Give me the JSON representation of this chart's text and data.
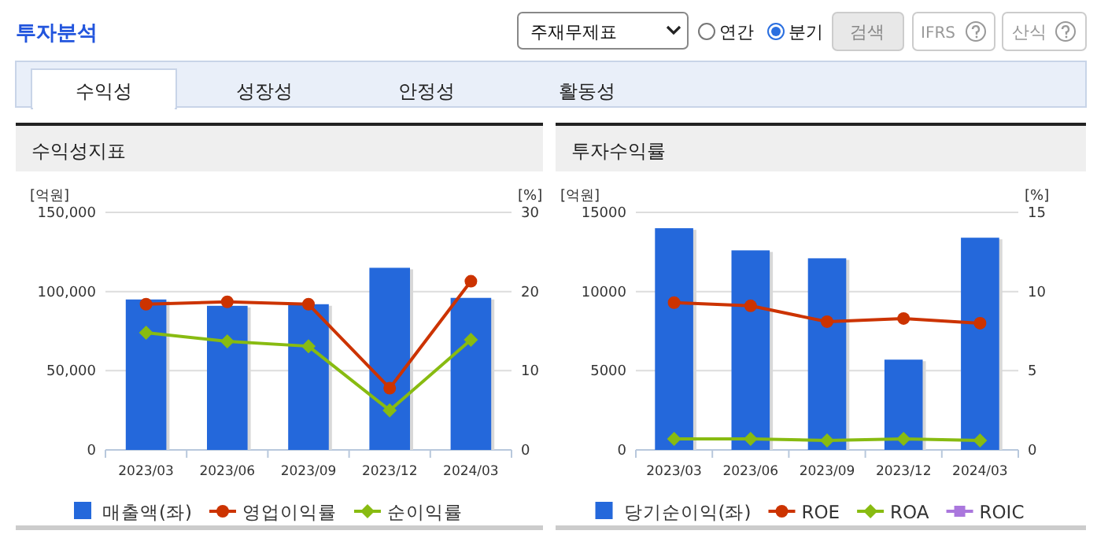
{
  "chart_data": [
    {
      "type": "other",
      "title": "투자분석",
      "annotations": [
        "주재무제표",
        "연간",
        "분기",
        "검색",
        "IFRS",
        "산식",
        "수익성",
        "성장성",
        "안정성",
        "활동성"
      ]
    },
    {
      "type": "bar",
      "title": "수익성지표",
      "ylabel": "[억원]",
      "y2label": "[%]",
      "categories": [
        "2023/03",
        "2023/06",
        "2023/09",
        "2023/12",
        "2024/03"
      ],
      "ylim": [
        0,
        150000
      ],
      "yticks": [
        {
          "value": 0,
          "label": "0"
        },
        {
          "value": 50000,
          "label": "50,000"
        },
        {
          "value": 100000,
          "label": "100,000"
        },
        {
          "value": 150000,
          "label": "150,000"
        }
      ],
      "y2lim": [
        0,
        30
      ],
      "y2ticks": [
        0,
        10,
        20,
        30
      ],
      "grid": "y",
      "legend": "bottom",
      "series": [
        {
          "name": "매출액(좌)",
          "type": "bar",
          "color": "#2468db",
          "values": [
            95000,
            91000,
            92000,
            115000,
            96000
          ]
        },
        {
          "name": "영업이익률",
          "type": "line",
          "axis": "y2",
          "marker": "circle",
          "color": "#cc3300",
          "values": [
            18.4,
            18.7,
            18.4,
            7.8,
            21.3
          ]
        },
        {
          "name": "순이익률",
          "type": "line",
          "axis": "y2",
          "marker": "diamond",
          "color": "#88bb11",
          "values": [
            14.8,
            13.7,
            13.1,
            5.0,
            13.9
          ]
        }
      ]
    },
    {
      "type": "bar",
      "title": "투자수익률",
      "ylabel": "[억원]",
      "y2label": "[%]",
      "categories": [
        "2023/03",
        "2023/06",
        "2023/09",
        "2023/12",
        "2024/03"
      ],
      "ylim": [
        0,
        15000
      ],
      "yticks": [
        0,
        5000,
        10000,
        15000
      ],
      "y2lim": [
        0,
        15
      ],
      "y2ticks": [
        0,
        5,
        10,
        15
      ],
      "grid": "y",
      "legend": "bottom",
      "series": [
        {
          "name": "당기순이익(좌)",
          "type": "bar",
          "color": "#2468db",
          "values": [
            14000,
            12600,
            12100,
            5700,
            13400
          ]
        },
        {
          "name": "ROE",
          "type": "line",
          "axis": "y2",
          "marker": "circle",
          "color": "#cc3300",
          "values": [
            9.3,
            9.1,
            8.1,
            8.3,
            8.0
          ]
        },
        {
          "name": "ROA",
          "type": "line",
          "axis": "y2",
          "marker": "diamond",
          "color": "#88bb11",
          "values": [
            0.7,
            0.7,
            0.6,
            0.7,
            0.6
          ]
        },
        {
          "name": "ROIC",
          "type": "line",
          "axis": "y2",
          "marker": "square",
          "color": "#aa77dd",
          "values": [
            null,
            null,
            null,
            null,
            null
          ]
        }
      ]
    }
  ]
}
